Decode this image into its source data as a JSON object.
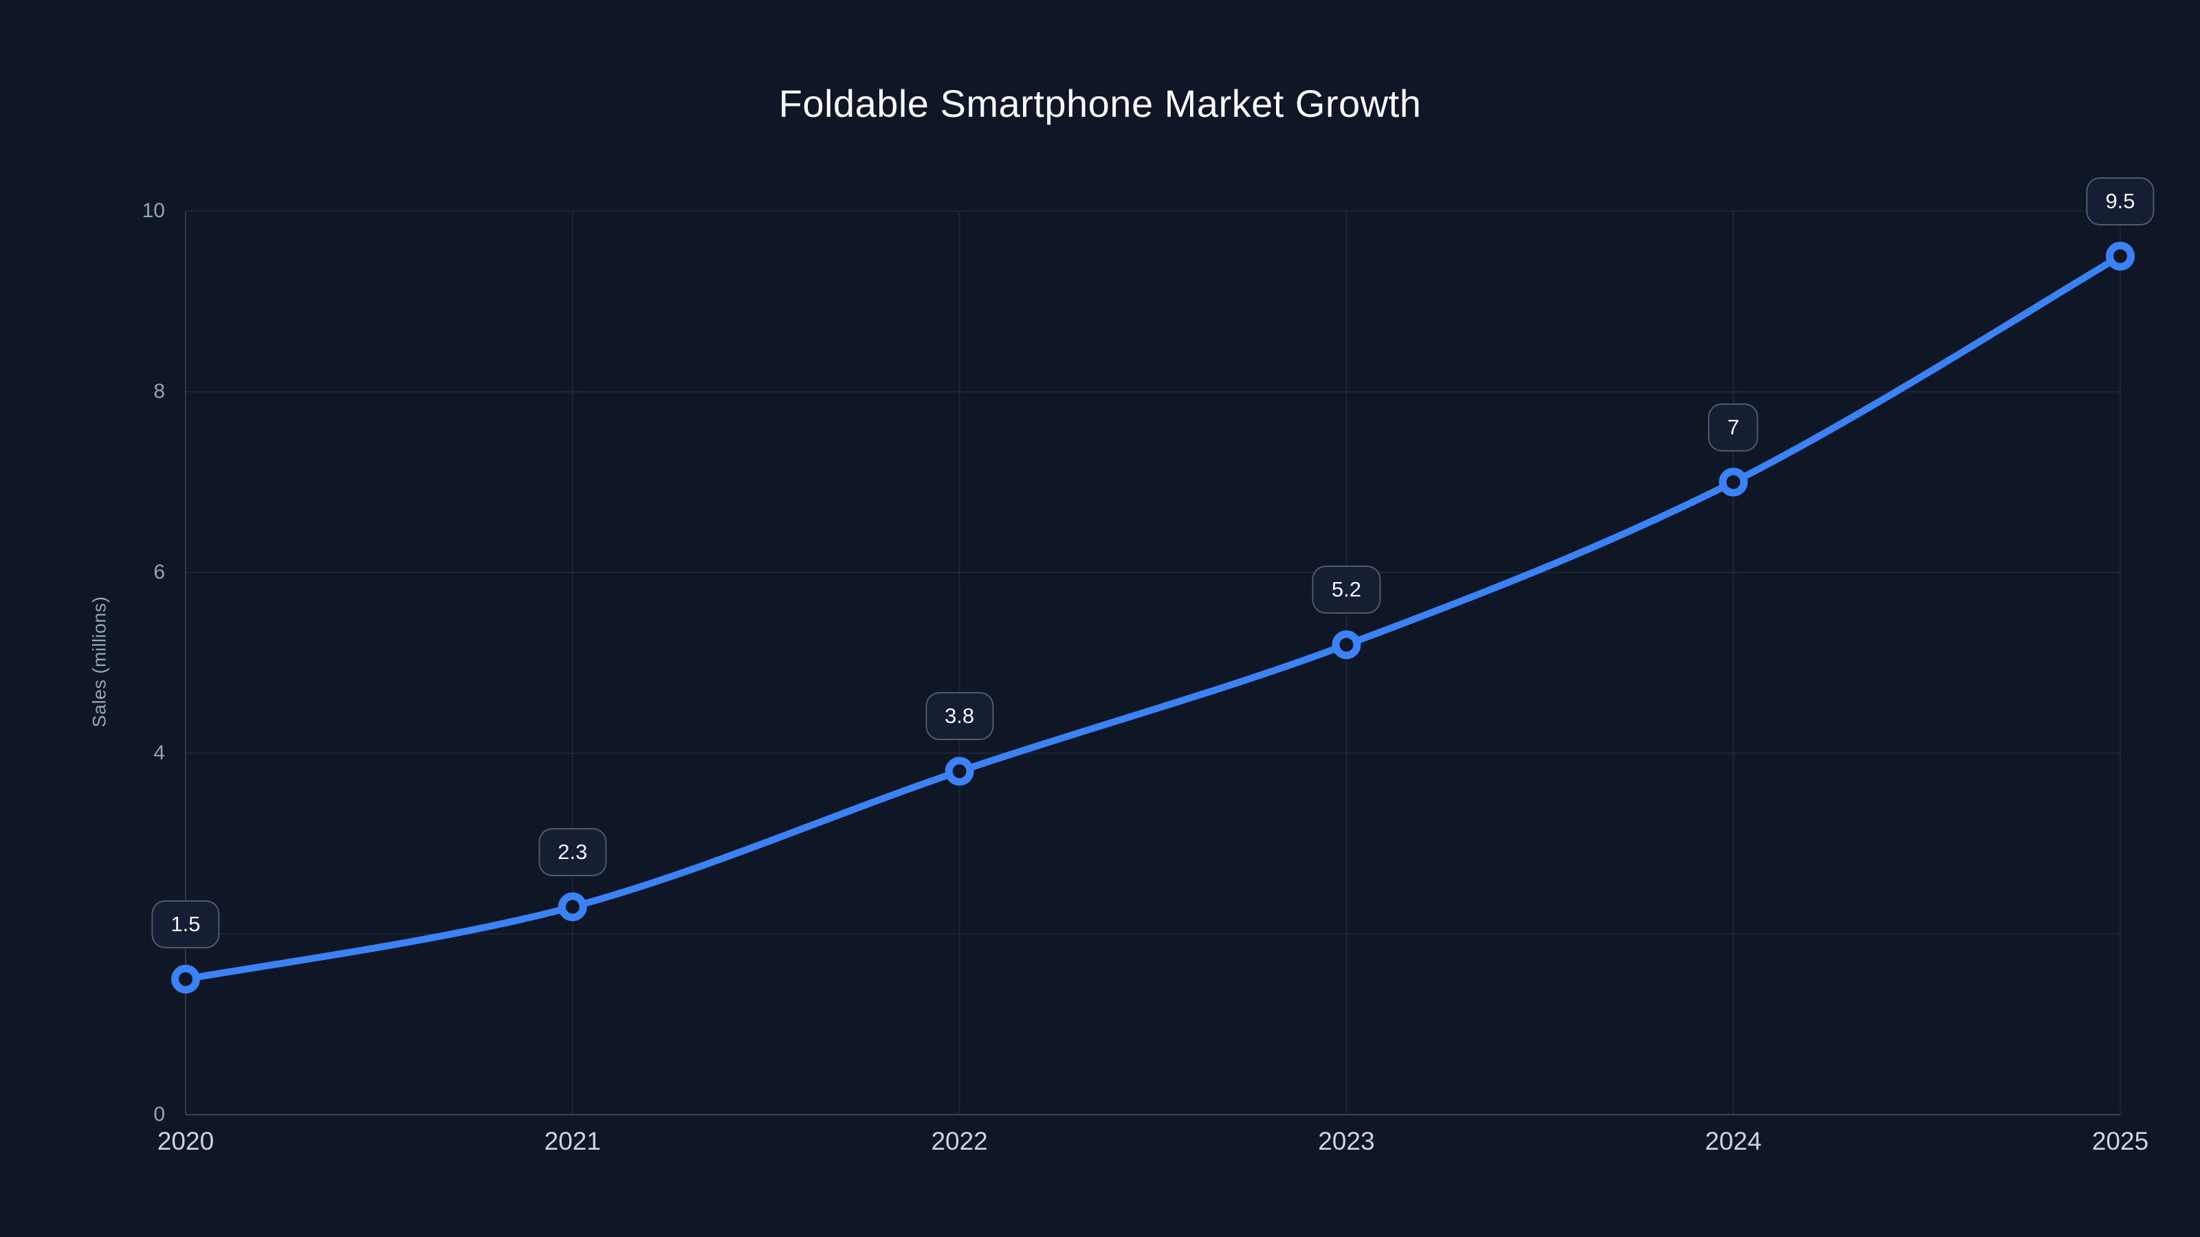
{
  "chart_data": {
    "type": "line",
    "title": "Foldable Smartphone Market Growth",
    "xlabel": "",
    "ylabel": "Sales (millions)",
    "categories": [
      "2020",
      "2021",
      "2022",
      "2023",
      "2024",
      "2025"
    ],
    "series": [
      {
        "name": "Sales (millions)",
        "values": [
          1.5,
          2.3,
          3.8,
          5.2,
          7,
          9.5
        ]
      }
    ],
    "point_labels": [
      "1.5",
      "2.3",
      "3.8",
      "5.2",
      "7",
      "9.5"
    ],
    "ylim": [
      0,
      10
    ],
    "yticks": [
      0,
      2,
      4,
      6,
      8,
      10
    ],
    "grid": true,
    "legend": "none",
    "smooth": true,
    "colors": {
      "background": "#0f1726",
      "line": "#3b82f6",
      "marker_ring": "#3b82f6",
      "marker_fill": "#0f1726",
      "grid": "rgba(148,163,184,0.10)",
      "axis_line": "rgba(148,163,184,0.30)",
      "x_tick_label": "#cbd5e1",
      "y_tick_label": "#94a3b8",
      "axis_title": "#94a3b8",
      "title": "#f8fafc",
      "badge_background": "#151e32",
      "badge_border": "rgba(148,163,184,0.45)",
      "badge_text": "#f1f5f9"
    }
  }
}
